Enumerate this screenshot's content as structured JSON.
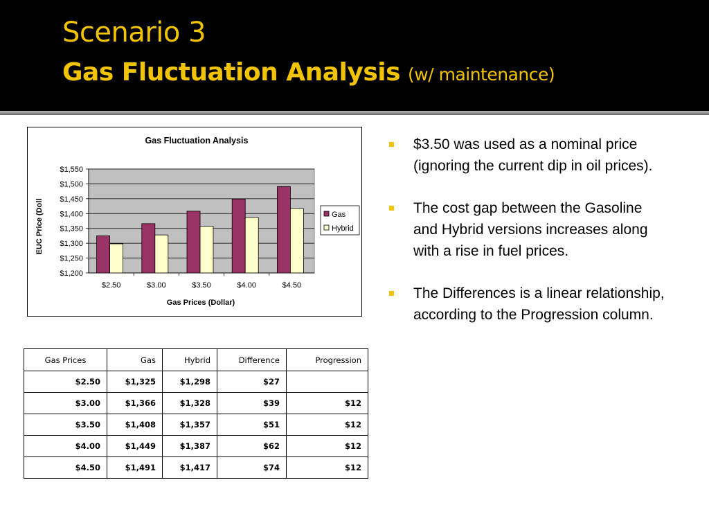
{
  "slide": {
    "title_line1": "Scenario 3",
    "title_line2_bold": "Gas Fluctuation Analysis",
    "title_line2_sub": "(w/ maintenance)"
  },
  "chart_data": {
    "type": "bar",
    "title": "Gas Fluctuation Analysis",
    "xlabel": "Gas Prices (Dollar)",
    "ylabel": "EUC Price (Doll",
    "categories": [
      "$2.50",
      "$3.00",
      "$3.50",
      "$4.00",
      "$4.50"
    ],
    "series": [
      {
        "name": "Gas",
        "values": [
          1325,
          1366,
          1408,
          1449,
          1491
        ],
        "color": "#993366"
      },
      {
        "name": "Hybrid",
        "values": [
          1298,
          1328,
          1357,
          1387,
          1417
        ],
        "color": "#ffffcc"
      }
    ],
    "ylim": [
      1200,
      1550
    ],
    "yticks": [
      "$1,200",
      "$1,250",
      "$1,300",
      "$1,350",
      "$1,400",
      "$1,450",
      "$1,500",
      "$1,550"
    ],
    "ytick_values": [
      1200,
      1250,
      1300,
      1350,
      1400,
      1450,
      1500,
      1550
    ],
    "grid": true,
    "plot_background": "#c0c0c0",
    "legend": "right"
  },
  "bullets": [
    "$3.50 was used as a nominal price (ignoring the current dip in oil prices).",
    "The cost gap between the Gasoline and Hybrid versions increases along with a rise in fuel prices.",
    "The Differences is a linear relationship, according to the Progression column."
  ],
  "table": {
    "headers": [
      "Gas Prices",
      "Gas",
      "Hybrid",
      "Difference",
      "Progression"
    ],
    "rows": [
      [
        "$2.50",
        "$1,325",
        "$1,298",
        "$27",
        ""
      ],
      [
        "$3.00",
        "$1,366",
        "$1,328",
        "$39",
        "$12"
      ],
      [
        "$3.50",
        "$1,408",
        "$1,357",
        "$51",
        "$12"
      ],
      [
        "$4.00",
        "$1,449",
        "$1,387",
        "$62",
        "$12"
      ],
      [
        "$4.50",
        "$1,491",
        "$1,417",
        "$74",
        "$12"
      ]
    ]
  },
  "colors": {
    "accent": "#f2c400",
    "header_bg": "#000000"
  }
}
